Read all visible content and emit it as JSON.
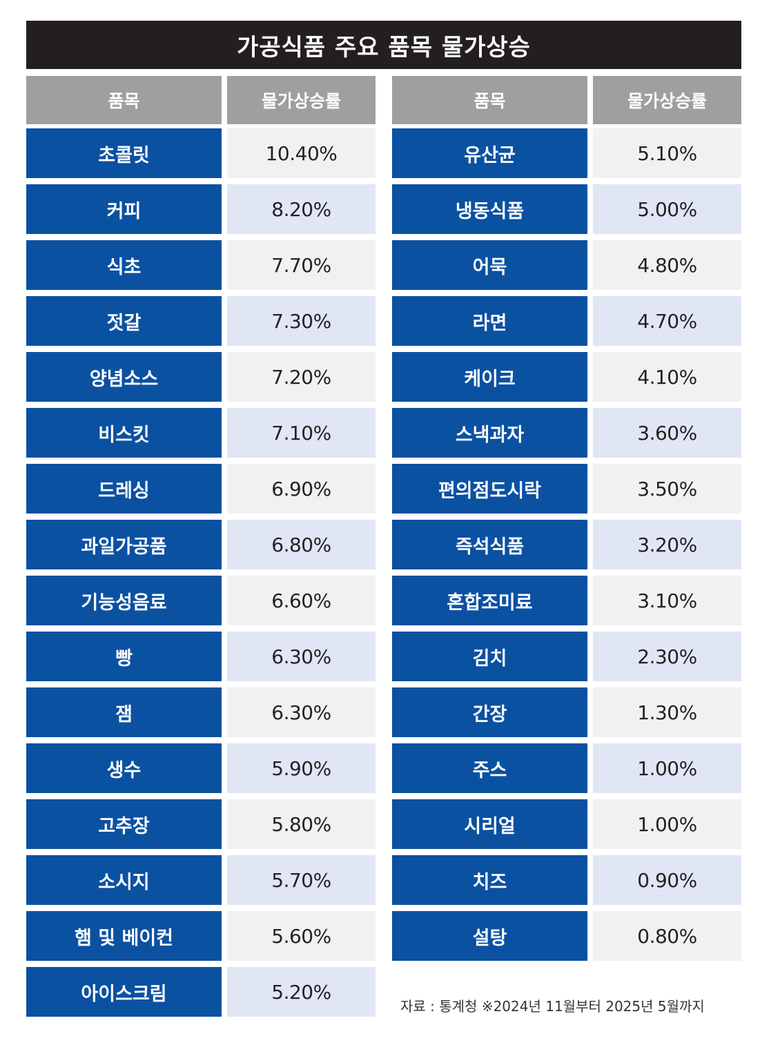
{
  "title": "가공식품 주요 품목 물가상승",
  "chart_data": {
    "type": "table",
    "columns": [
      "품목",
      "물가상승률"
    ],
    "tables": [
      {
        "rows": [
          {
            "item": "초콜릿",
            "value": "10.40%"
          },
          {
            "item": "커피",
            "value": "8.20%"
          },
          {
            "item": "식초",
            "value": "7.70%"
          },
          {
            "item": "젓갈",
            "value": "7.30%"
          },
          {
            "item": "양념소스",
            "value": "7.20%"
          },
          {
            "item": "비스킷",
            "value": "7.10%"
          },
          {
            "item": "드레싱",
            "value": "6.90%"
          },
          {
            "item": "과일가공품",
            "value": "6.80%"
          },
          {
            "item": "기능성음료",
            "value": "6.60%"
          },
          {
            "item": "빵",
            "value": "6.30%"
          },
          {
            "item": "잼",
            "value": "6.30%"
          },
          {
            "item": "생수",
            "value": "5.90%"
          },
          {
            "item": "고추장",
            "value": "5.80%"
          },
          {
            "item": "소시지",
            "value": "5.70%"
          },
          {
            "item": "햄 및 베이컨",
            "value": "5.60%"
          },
          {
            "item": "아이스크림",
            "value": "5.20%"
          }
        ]
      },
      {
        "rows": [
          {
            "item": "유산균",
            "value": "5.10%"
          },
          {
            "item": "냉동식품",
            "value": "5.00%"
          },
          {
            "item": "어묵",
            "value": "4.80%"
          },
          {
            "item": "라면",
            "value": "4.70%"
          },
          {
            "item": "케이크",
            "value": "4.10%"
          },
          {
            "item": "스낵과자",
            "value": "3.60%"
          },
          {
            "item": "편의점도시락",
            "value": "3.50%"
          },
          {
            "item": "즉석식품",
            "value": "3.20%"
          },
          {
            "item": "혼합조미료",
            "value": "3.10%"
          },
          {
            "item": "김치",
            "value": "2.30%"
          },
          {
            "item": "간장",
            "value": "1.30%"
          },
          {
            "item": "주스",
            "value": "1.00%"
          },
          {
            "item": "시리얼",
            "value": "1.00%"
          },
          {
            "item": "치즈",
            "value": "0.90%"
          },
          {
            "item": "설탕",
            "value": "0.80%"
          }
        ]
      }
    ]
  },
  "source": "자료 : 통계청 ※2024년 11월부터 2025년 5월까지",
  "colors": {
    "title_bg": "#231f20",
    "header_bg": "#9f9f9f",
    "item_bg": "#0b51a2",
    "value_bg_light": "#f1f1f1",
    "value_bg_tint": "#e1e6f4"
  }
}
